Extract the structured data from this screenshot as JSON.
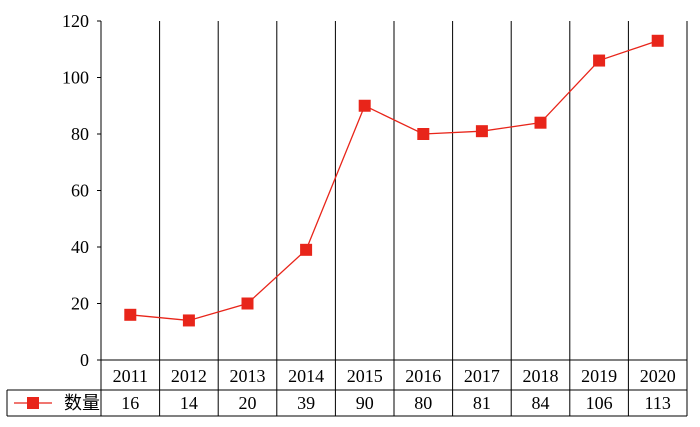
{
  "chart_data": {
    "type": "line",
    "categories": [
      "2011",
      "2012",
      "2013",
      "2014",
      "2015",
      "2016",
      "2017",
      "2018",
      "2019",
      "2020"
    ],
    "series": [
      {
        "name": "数量",
        "values": [
          16,
          14,
          20,
          39,
          90,
          80,
          81,
          84,
          106,
          113
        ],
        "color": "#e8251a",
        "marker": "square"
      }
    ],
    "ylim": [
      0,
      120
    ],
    "yticks": [
      "0",
      "20",
      "40",
      "60",
      "80",
      "100",
      "120"
    ],
    "vertical_grid": true,
    "horizontal_grid": false,
    "data_table": true
  }
}
